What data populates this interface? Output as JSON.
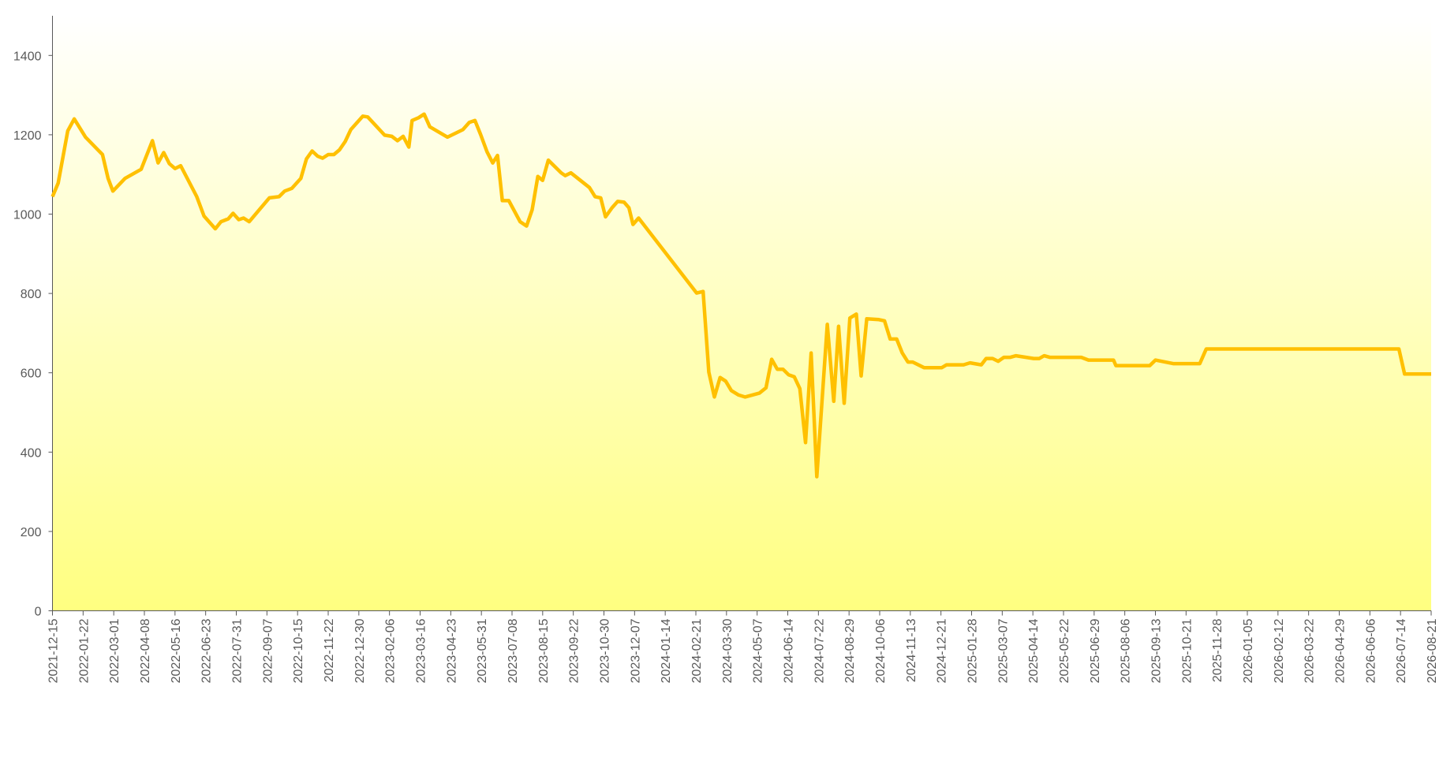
{
  "chart_data": {
    "type": "line",
    "x": [
      "2021-12-15",
      "2021-12-22",
      "2022-01-03",
      "2022-01-11",
      "2022-01-25",
      "2022-02-15",
      "2022-02-22",
      "2022-02-28",
      "2022-03-15",
      "2022-04-04",
      "2022-04-18",
      "2022-04-25",
      "2022-05-02",
      "2022-05-09",
      "2022-05-16",
      "2022-05-23",
      "2022-06-12",
      "2022-06-21",
      "2022-07-05",
      "2022-07-12",
      "2022-07-21",
      "2022-07-27",
      "2022-08-03",
      "2022-08-09",
      "2022-08-16",
      "2022-09-10",
      "2022-09-22",
      "2022-09-29",
      "2022-10-08",
      "2022-10-19",
      "2022-10-26",
      "2022-11-02",
      "2022-11-09",
      "2022-11-15",
      "2022-11-22",
      "2022-11-29",
      "2022-12-06",
      "2022-12-13",
      "2022-12-20",
      "2023-01-04",
      "2023-01-10",
      "2023-01-31",
      "2023-02-09",
      "2023-02-16",
      "2023-02-23",
      "2023-03-02",
      "2023-03-06",
      "2023-03-14",
      "2023-03-21",
      "2023-03-28",
      "2023-04-19",
      "2023-05-08",
      "2023-05-16",
      "2023-05-23",
      "2023-05-30",
      "2023-06-07",
      "2023-06-14",
      "2023-06-20",
      "2023-06-26",
      "2023-07-04",
      "2023-07-18",
      "2023-07-26",
      "2023-08-02",
      "2023-08-09",
      "2023-08-15",
      "2023-08-22",
      "2023-08-29",
      "2023-09-07",
      "2023-09-12",
      "2023-09-19",
      "2023-10-12",
      "2023-10-19",
      "2023-10-26",
      "2023-11-01",
      "2023-11-09",
      "2023-11-16",
      "2023-11-24",
      "2023-11-30",
      "2023-12-05",
      "2023-12-12",
      "2024-02-22",
      "2024-03-01",
      "2024-03-08",
      "2024-03-15",
      "2024-03-22",
      "2024-03-29",
      "2024-04-05",
      "2024-04-14",
      "2024-04-22",
      "2024-05-01",
      "2024-05-10",
      "2024-05-18",
      "2024-05-25",
      "2024-06-01",
      "2024-06-08",
      "2024-06-15",
      "2024-06-22",
      "2024-06-29",
      "2024-07-06",
      "2024-07-13",
      "2024-07-20",
      "2024-08-02",
      "2024-08-10",
      "2024-08-16",
      "2024-08-23",
      "2024-08-30",
      "2024-09-07",
      "2024-09-13",
      "2024-09-20",
      "2024-10-05",
      "2024-10-12",
      "2024-10-19",
      "2024-10-27",
      "2024-11-03",
      "2024-11-10",
      "2024-11-16",
      "2024-11-30",
      "2024-12-22",
      "2024-12-28",
      "2025-01-18",
      "2025-01-26",
      "2025-02-09",
      "2025-02-15",
      "2025-02-23",
      "2025-03-02",
      "2025-03-09",
      "2025-03-17",
      "2025-03-24",
      "2025-04-15",
      "2025-04-22",
      "2025-04-28",
      "2025-05-05",
      "2025-06-13",
      "2025-06-22",
      "2025-07-23",
      "2025-07-26",
      "2025-09-06",
      "2025-09-13",
      "2025-10-05",
      "2025-11-07",
      "2025-11-15",
      "2026-07-12",
      "2026-07-19",
      "2026-08-21"
    ],
    "series": [
      {
        "color": "#ffc000",
        "values": [
          1044,
          1078,
          1210,
          1240,
          1194,
          1150,
          1090,
          1058,
          1090,
          1113,
          1185,
          1129,
          1155,
          1127,
          1115,
          1122,
          1044,
          995,
          963,
          981,
          988,
          1002,
          986,
          990,
          981,
          1041,
          1044,
          1058,
          1065,
          1090,
          1139,
          1159,
          1146,
          1141,
          1150,
          1150,
          1162,
          1183,
          1213,
          1247,
          1245,
          1199,
          1196,
          1185,
          1196,
          1169,
          1236,
          1243,
          1252,
          1220,
          1194,
          1213,
          1231,
          1236,
          1201,
          1157,
          1129,
          1148,
          1034,
          1034,
          981,
          970,
          1011,
          1095,
          1085,
          1136,
          1122,
          1104,
          1097,
          1104,
          1067,
          1044,
          1041,
          993,
          1016,
          1032,
          1030,
          1016,
          974,
          990,
          801,
          805,
          602,
          539,
          588,
          579,
          555,
          544,
          539,
          544,
          549,
          562,
          634,
          609,
          609,
          595,
          590,
          560,
          424,
          650,
          338,
          722,
          528,
          717,
          523,
          738,
          748,
          592,
          736,
          734,
          731,
          685,
          685,
          650,
          627,
          627,
          613,
          613,
          620,
          620,
          625,
          620,
          636,
          636,
          629,
          639,
          639,
          643,
          636,
          636,
          643,
          639,
          639,
          632,
          632,
          618,
          618,
          632,
          623,
          623,
          660,
          660,
          597,
          597
        ]
      }
    ],
    "xlim": [
      "2021-12-15",
      "2026-08-21"
    ],
    "xticks": [
      "2021-12-15",
      "2022-01-22",
      "2022-03-01",
      "2022-04-08",
      "2022-05-16",
      "2022-06-23",
      "2022-07-31",
      "2022-09-07",
      "2022-10-15",
      "2022-11-22",
      "2022-12-30",
      "2023-02-06",
      "2023-03-16",
      "2023-04-23",
      "2023-05-31",
      "2023-07-08",
      "2023-08-15",
      "2023-09-22",
      "2023-10-30",
      "2023-12-07",
      "2024-01-14",
      "2024-02-21",
      "2024-03-30",
      "2024-05-07",
      "2024-06-14",
      "2024-07-22",
      "2024-08-29",
      "2024-10-06",
      "2024-11-13",
      "2024-12-21",
      "2025-01-28",
      "2025-03-07",
      "2025-04-14",
      "2025-05-22",
      "2025-06-29",
      "2025-08-06",
      "2025-09-13",
      "2025-10-21",
      "2025-11-28",
      "2026-01-05",
      "2026-02-12",
      "2026-03-22",
      "2026-04-29",
      "2026-06-06",
      "2026-07-14",
      "2026-08-21"
    ],
    "ylim": [
      0,
      1500
    ],
    "yticks": [
      0,
      200,
      400,
      600,
      800,
      1000,
      1200,
      1400
    ]
  }
}
